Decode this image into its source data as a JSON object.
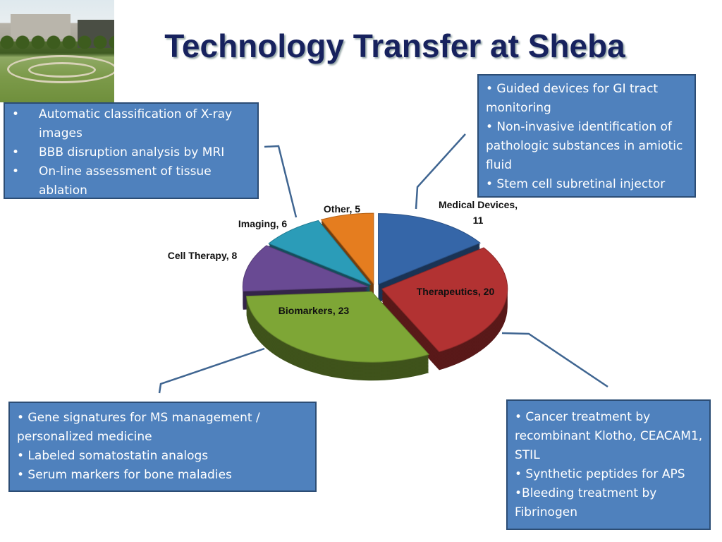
{
  "title": "Technology Transfer at Sheba",
  "boxes": {
    "imaging": [
      "Automatic classification of X-ray images",
      "BBB disruption analysis by MRI",
      "On-line assessment of tissue ablation"
    ],
    "medical": [
      "• Guided devices for GI tract monitoring",
      "• Non-invasive identification of pathologic substances in amiotic fluid",
      "• Stem cell subretinal injector"
    ],
    "biomarkers": [
      "• Gene signatures for MS management / personalized medicine",
      "• Labeled somatostatin analogs",
      "• Serum markers for bone maladies"
    ],
    "therapeutics": [
      "• Cancer treatment by recombinant Klotho, CEACAM1, STIL",
      "• Synthetic peptides for APS",
      "•Bleeding treatment by Fibrinogen"
    ]
  },
  "chart_data": {
    "type": "pie",
    "style": "3d-exploded",
    "categories": [
      "Medical Devices",
      "Therapeutics",
      "Biomarkers",
      "Cell Therapy",
      "Imaging",
      "Other"
    ],
    "values": [
      11,
      20,
      23,
      8,
      6,
      5
    ],
    "labels": [
      "Medical Devices, 11",
      "Therapeutics, 20",
      "Biomarkers, 23",
      "Cell Therapy, 8",
      "Imaging, 6",
      "Other, 5"
    ],
    "colors": [
      "#3566a8",
      "#b23232",
      "#7ea636",
      "#694a93",
      "#2b9cb8",
      "#e57d1f"
    ],
    "legend": "none"
  }
}
